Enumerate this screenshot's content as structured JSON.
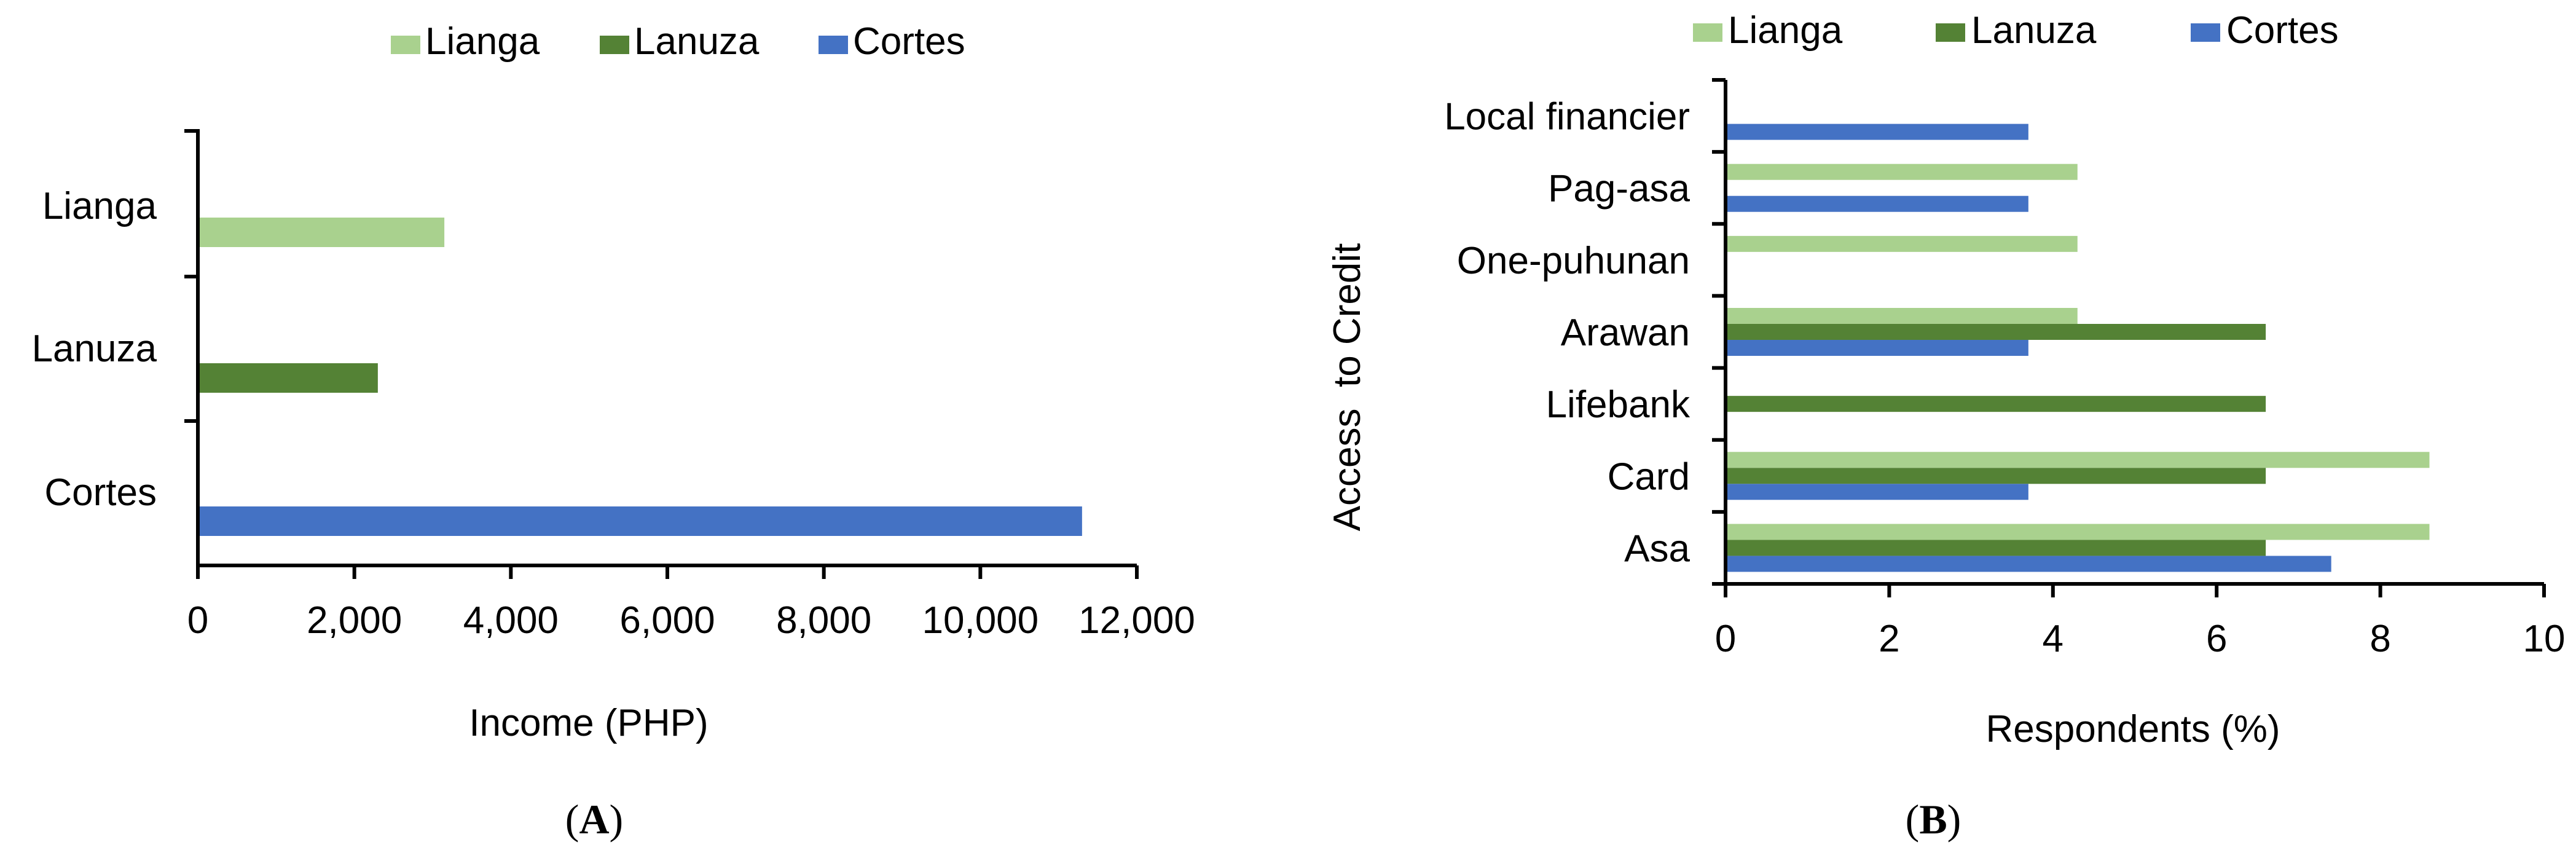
{
  "colors": {
    "Lianga": "#a9d18e",
    "Lanuza": "#548235",
    "Cortes": "#4472c4",
    "axis": "#000000"
  },
  "panels": [
    {
      "label_open": "(",
      "label_letter": "A",
      "label_close": ")"
    },
    {
      "label_open": "(",
      "label_letter": "B",
      "label_close": ")"
    }
  ],
  "chart_data": [
    {
      "type": "bar",
      "orientation": "horizontal",
      "categories": [
        "Lianga",
        "Lanuza",
        "Cortes"
      ],
      "series": [
        {
          "name": "Lianga",
          "values": [
            3150,
            null,
            null
          ]
        },
        {
          "name": "Lanuza",
          "values": [
            null,
            2300,
            null
          ]
        },
        {
          "name": "Cortes",
          "values": [
            null,
            null,
            11300
          ]
        }
      ],
      "legend": [
        "Lianga",
        "Lanuza",
        "Cortes"
      ],
      "legend_position": "top",
      "xlabel": "Income (PHP)",
      "ylabel": "",
      "xlim": [
        0,
        12000
      ],
      "xticks": [
        "0",
        "2,000",
        "4,000",
        "6,000",
        "8,000",
        "10,000",
        "12,000"
      ],
      "grid": false
    },
    {
      "type": "bar",
      "orientation": "horizontal",
      "categories": [
        "Local financier",
        "Pag-asa",
        "One-puhunan",
        "Arawan",
        "Lifebank",
        "Card",
        "Asa"
      ],
      "series": [
        {
          "name": "Lianga",
          "values": [
            0,
            4.3,
            4.3,
            4.3,
            0,
            8.6,
            8.6
          ]
        },
        {
          "name": "Lanuza",
          "values": [
            0,
            0,
            0,
            6.6,
            6.6,
            6.6,
            6.6
          ]
        },
        {
          "name": "Cortes",
          "values": [
            3.7,
            3.7,
            0,
            3.7,
            0,
            3.7,
            7.4
          ]
        }
      ],
      "legend": [
        "Lianga",
        "Lanuza",
        "Cortes"
      ],
      "legend_position": "top",
      "xlabel": "Respondents (%)",
      "ylabel": "Access  to Credit",
      "xlim": [
        0,
        10
      ],
      "xticks": [
        "0",
        "2",
        "4",
        "6",
        "8",
        "10"
      ],
      "grid": false
    }
  ]
}
